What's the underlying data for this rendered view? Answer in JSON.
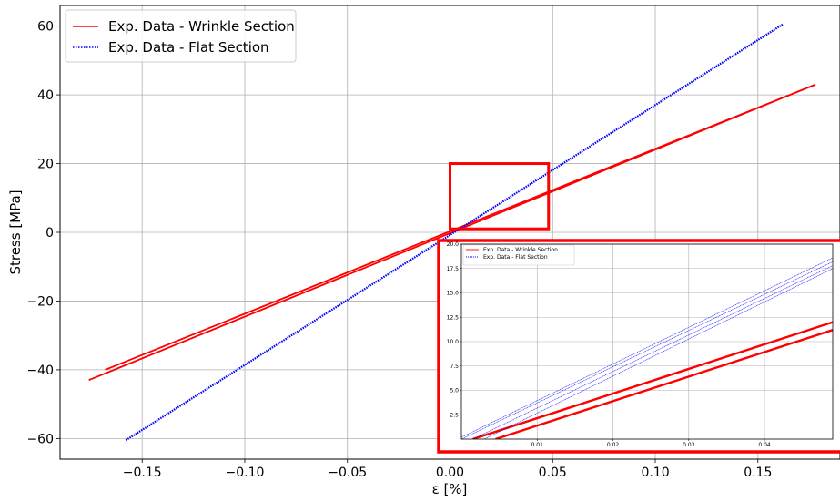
{
  "chart_data": {
    "type": "line",
    "xlabel": "ε [%]",
    "ylabel": "Stress [MPa]",
    "xlim": [
      -0.19,
      0.19
    ],
    "ylim": [
      -66,
      66
    ],
    "xticks": [
      -0.15,
      -0.1,
      -0.05,
      0.0,
      0.05,
      0.1,
      0.15
    ],
    "xtick_labels": [
      "−0.15",
      "−0.10",
      "−0.05",
      "0.00",
      "0.05",
      "0.10",
      "0.15"
    ],
    "yticks": [
      60,
      40,
      20,
      0,
      -20,
      -40,
      -60
    ],
    "ytick_labels": [
      "60",
      "40",
      "20",
      "0",
      "−20",
      "−40",
      "−60"
    ],
    "grid": true,
    "legend_position": "top-left",
    "series": [
      {
        "name": "Exp. Data - Wrinkle Section",
        "color": "#ff0000",
        "style": "solid",
        "branches": [
          {
            "x": [
              -0.176,
              0.178
            ],
            "y": [
              -43.0,
              43.0
            ]
          },
          {
            "x": [
              -0.168,
              0.178
            ],
            "y": [
              -40.0,
              43.0
            ]
          }
        ]
      },
      {
        "name": "Exp. Data - Flat Section",
        "color": "#0000ff",
        "style": "dotted",
        "branches": [
          {
            "x": [
              -0.158,
              0.162
            ],
            "y": [
              -60.5,
              60.5
            ]
          }
        ]
      }
    ],
    "zoom_region": {
      "xlim": [
        0.0,
        0.048
      ],
      "ylim": [
        1.0,
        20.0
      ]
    },
    "inset": {
      "xlim": [
        0.0,
        0.049
      ],
      "ylim": [
        0.0,
        20.0
      ],
      "xticks": [
        0.01,
        0.02,
        0.03,
        0.04
      ],
      "xtick_labels": [
        "0.01",
        "0.02",
        "0.03",
        "0.04"
      ],
      "yticks": [
        2.5,
        5.0,
        7.5,
        10.0,
        12.5,
        15.0,
        17.5,
        20.0
      ],
      "ytick_labels": [
        "2.5",
        "5.0",
        "7.5",
        "10.0",
        "12.5",
        "15.0",
        "17.5",
        "20.0"
      ],
      "legend_position": "top-left",
      "series": [
        {
          "name": "Exp. Data - Wrinkle Section",
          "color": "#ff0000",
          "branches": [
            {
              "x": [
                0.0015,
                0.049
              ],
              "y": [
                0.0,
                12.0
              ]
            },
            {
              "x": [
                0.0045,
                0.049
              ],
              "y": [
                0.0,
                11.2
              ]
            }
          ]
        },
        {
          "name": "Exp. Data - Flat Section",
          "color": "#0000ff",
          "branches": [
            {
              "x": [
                0.0,
                0.049
              ],
              "y": [
                0.2,
                18.6
              ]
            },
            {
              "x": [
                0.0,
                0.049
              ],
              "y": [
                0.0,
                18.2
              ]
            },
            {
              "x": [
                0.0015,
                0.049
              ],
              "y": [
                0.0,
                17.8
              ]
            },
            {
              "x": [
                0.003,
                0.049
              ],
              "y": [
                0.0,
                17.5
              ]
            }
          ]
        }
      ]
    }
  }
}
